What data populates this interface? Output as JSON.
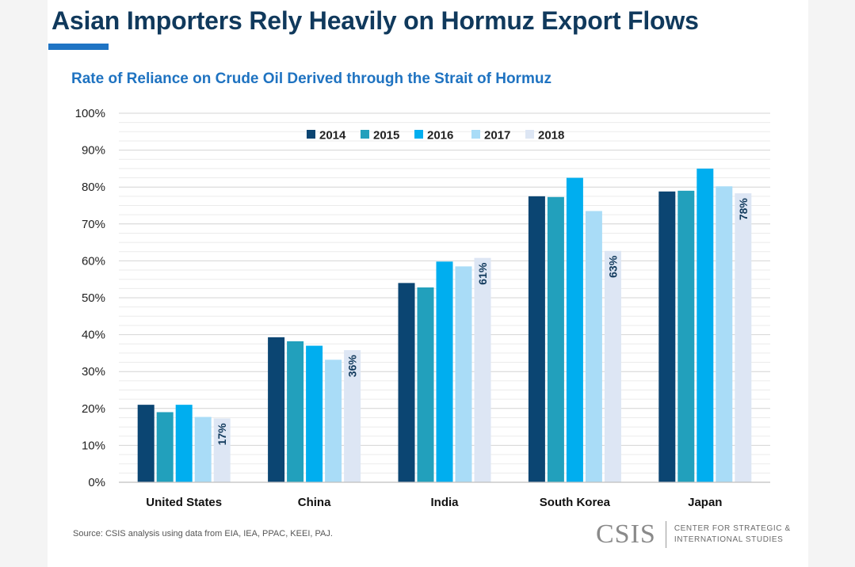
{
  "header": {
    "title": "Asian Importers Rely Heavily on Hormuz Export Flows"
  },
  "chart_data": {
    "type": "bar",
    "title": "Rate of Reliance on Crude Oil Derived through the Strait of Hormuz",
    "xlabel": "",
    "ylabel": "",
    "ylim": [
      0,
      100
    ],
    "yticks": [
      "0%",
      "10%",
      "20%",
      "30%",
      "40%",
      "50%",
      "60%",
      "70%",
      "80%",
      "90%",
      "100%"
    ],
    "categories": [
      "United States",
      "China",
      "India",
      "South Korea",
      "Japan"
    ],
    "series": [
      {
        "name": "2014",
        "color": "#0b4572",
        "values": [
          21,
          39.3,
          54,
          77.5,
          78.8
        ]
      },
      {
        "name": "2015",
        "color": "#22a0bc",
        "values": [
          19,
          38.2,
          52.8,
          77.3,
          79
        ]
      },
      {
        "name": "2016",
        "color": "#00aeef",
        "values": [
          21,
          37,
          59.8,
          82.5,
          85
        ]
      },
      {
        "name": "2017",
        "color": "#a9dcf7",
        "values": [
          17.7,
          33.2,
          58.5,
          73.5,
          80.2
        ]
      },
      {
        "name": "2018",
        "color": "#dde6f4",
        "values": [
          17.3,
          35.8,
          60.8,
          62.7,
          78.3
        ]
      }
    ],
    "data_labels": {
      "series": "2018",
      "labels": [
        "17%",
        "36%",
        "61%",
        "63%",
        "78%"
      ]
    },
    "grid": true,
    "legend_position": "top-center"
  },
  "footer": {
    "source": "Source: CSIS analysis using data from EIA, IEA, PPAC, KEEI, PAJ.",
    "logo_mark": "CSIS",
    "logo_text": "CENTER FOR STRATEGIC &\nINTERNATIONAL STUDIES"
  }
}
